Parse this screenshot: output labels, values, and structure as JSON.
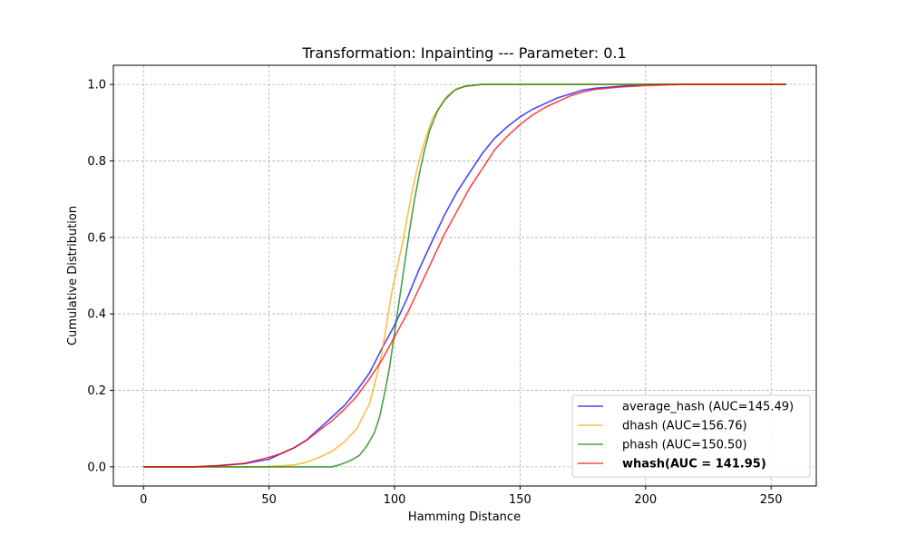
{
  "chart_data": {
    "type": "line",
    "title": "Transformation: Inpainting --- Parameter: 0.1",
    "xlabel": "Hamming Distance",
    "ylabel": "Cumulative Distribution",
    "xlim": [
      -12,
      268
    ],
    "ylim": [
      -0.05,
      1.05
    ],
    "xticks": [
      0,
      50,
      100,
      150,
      200,
      250
    ],
    "yticks": [
      0.0,
      0.2,
      0.4,
      0.6,
      0.8,
      1.0
    ],
    "xtick_labels": [
      "0",
      "50",
      "100",
      "150",
      "200",
      "250"
    ],
    "ytick_labels": [
      "0.0",
      "0.2",
      "0.4",
      "0.6",
      "0.8",
      "1.0"
    ],
    "grid": true,
    "legend_position": "lower-right",
    "series": [
      {
        "name": "average_hash (AUC=145.49)",
        "color": "#0000ff",
        "bold": false,
        "points": [
          [
            0,
            0
          ],
          [
            20,
            0
          ],
          [
            30,
            0.003
          ],
          [
            40,
            0.008
          ],
          [
            50,
            0.02
          ],
          [
            55,
            0.035
          ],
          [
            60,
            0.05
          ],
          [
            65,
            0.07
          ],
          [
            70,
            0.1
          ],
          [
            75,
            0.13
          ],
          [
            80,
            0.16
          ],
          [
            85,
            0.2
          ],
          [
            90,
            0.245
          ],
          [
            95,
            0.31
          ],
          [
            100,
            0.37
          ],
          [
            105,
            0.44
          ],
          [
            110,
            0.52
          ],
          [
            115,
            0.59
          ],
          [
            120,
            0.66
          ],
          [
            125,
            0.72
          ],
          [
            130,
            0.77
          ],
          [
            135,
            0.82
          ],
          [
            140,
            0.86
          ],
          [
            145,
            0.89
          ],
          [
            150,
            0.915
          ],
          [
            155,
            0.935
          ],
          [
            160,
            0.95
          ],
          [
            165,
            0.965
          ],
          [
            170,
            0.975
          ],
          [
            175,
            0.985
          ],
          [
            180,
            0.99
          ],
          [
            190,
            0.995
          ],
          [
            200,
            1.0
          ],
          [
            256,
            1.0
          ]
        ]
      },
      {
        "name": "dhash (AUC=156.76)",
        "color": "#ffa500",
        "bold": false,
        "points": [
          [
            0,
            0
          ],
          [
            40,
            0
          ],
          [
            50,
            0.001
          ],
          [
            60,
            0.005
          ],
          [
            65,
            0.012
          ],
          [
            70,
            0.025
          ],
          [
            75,
            0.04
          ],
          [
            80,
            0.065
          ],
          [
            85,
            0.1
          ],
          [
            90,
            0.165
          ],
          [
            93,
            0.24
          ],
          [
            95,
            0.3
          ],
          [
            97,
            0.38
          ],
          [
            99,
            0.46
          ],
          [
            101,
            0.52
          ],
          [
            103,
            0.58
          ],
          [
            105,
            0.65
          ],
          [
            107,
            0.72
          ],
          [
            109,
            0.78
          ],
          [
            111,
            0.83
          ],
          [
            113,
            0.87
          ],
          [
            115,
            0.91
          ],
          [
            118,
            0.94
          ],
          [
            121,
            0.97
          ],
          [
            125,
            0.99
          ],
          [
            130,
            0.997
          ],
          [
            135,
            1.0
          ],
          [
            256,
            1.0
          ]
        ]
      },
      {
        "name": "phash (AUC=150.50)",
        "color": "#008000",
        "bold": false,
        "points": [
          [
            0,
            0
          ],
          [
            75,
            0
          ],
          [
            78,
            0.005
          ],
          [
            82,
            0.015
          ],
          [
            86,
            0.03
          ],
          [
            89,
            0.055
          ],
          [
            92,
            0.09
          ],
          [
            94,
            0.13
          ],
          [
            96,
            0.19
          ],
          [
            98,
            0.26
          ],
          [
            100,
            0.35
          ],
          [
            102,
            0.44
          ],
          [
            104,
            0.53
          ],
          [
            106,
            0.62
          ],
          [
            108,
            0.7
          ],
          [
            110,
            0.77
          ],
          [
            112,
            0.83
          ],
          [
            114,
            0.88
          ],
          [
            117,
            0.93
          ],
          [
            120,
            0.96
          ],
          [
            124,
            0.985
          ],
          [
            128,
            0.995
          ],
          [
            135,
            1.0
          ],
          [
            256,
            1.0
          ]
        ]
      },
      {
        "name": "whash(AUC = 141.95)",
        "color": "#ff0000",
        "bold": true,
        "points": [
          [
            0,
            0
          ],
          [
            20,
            0
          ],
          [
            30,
            0.003
          ],
          [
            40,
            0.009
          ],
          [
            50,
            0.025
          ],
          [
            55,
            0.035
          ],
          [
            60,
            0.05
          ],
          [
            65,
            0.07
          ],
          [
            70,
            0.095
          ],
          [
            75,
            0.12
          ],
          [
            80,
            0.15
          ],
          [
            85,
            0.185
          ],
          [
            90,
            0.23
          ],
          [
            95,
            0.28
          ],
          [
            100,
            0.34
          ],
          [
            105,
            0.4
          ],
          [
            110,
            0.47
          ],
          [
            115,
            0.54
          ],
          [
            120,
            0.61
          ],
          [
            125,
            0.67
          ],
          [
            130,
            0.73
          ],
          [
            135,
            0.78
          ],
          [
            140,
            0.83
          ],
          [
            145,
            0.865
          ],
          [
            150,
            0.895
          ],
          [
            155,
            0.92
          ],
          [
            160,
            0.94
          ],
          [
            165,
            0.955
          ],
          [
            170,
            0.97
          ],
          [
            175,
            0.98
          ],
          [
            180,
            0.987
          ],
          [
            190,
            0.993
          ],
          [
            200,
            0.997
          ],
          [
            215,
            1.0
          ],
          [
            256,
            1.0
          ]
        ]
      }
    ]
  }
}
